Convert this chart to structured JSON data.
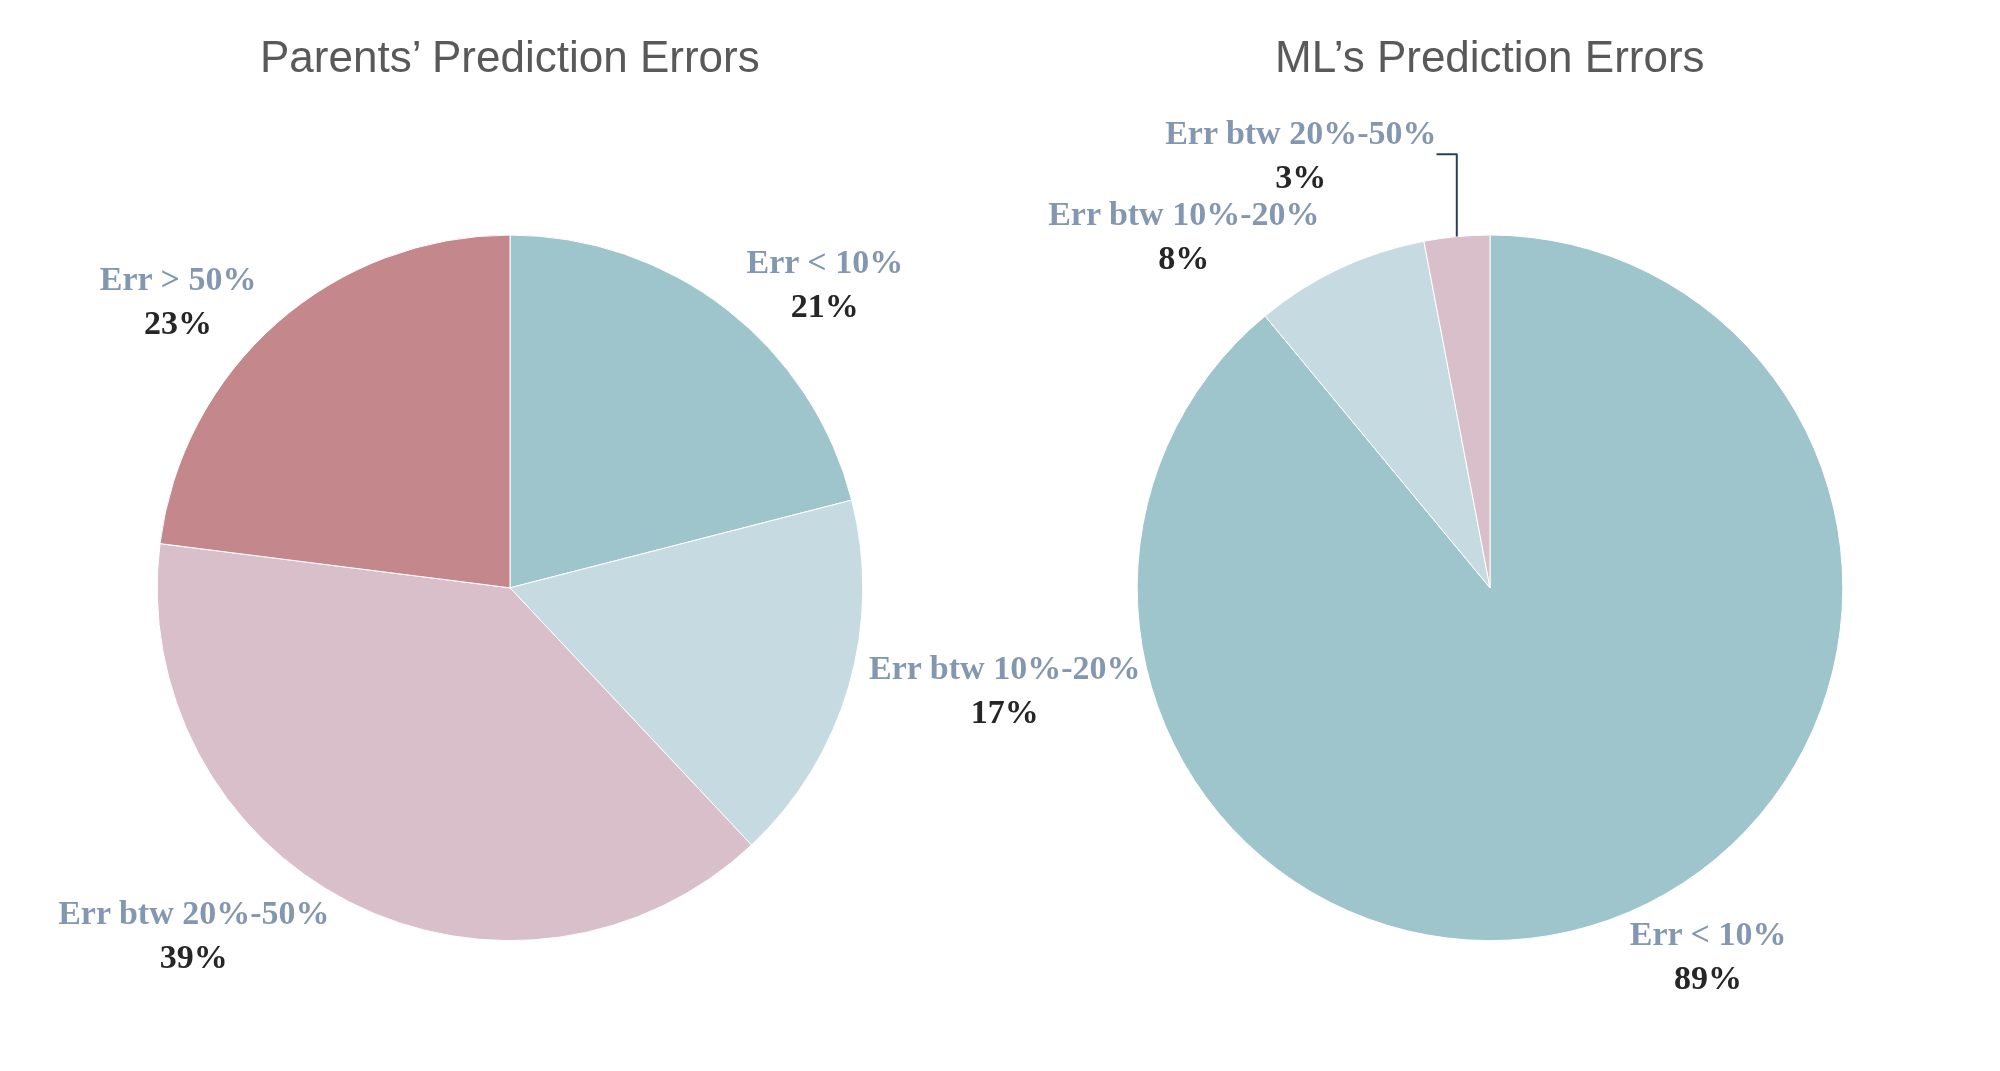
{
  "chart_data": [
    {
      "type": "pie",
      "title": "Parents’ Prediction Errors",
      "categories": [
        "Err < 10%",
        "Err btw 10%-20%",
        "Err btw 20%-50%",
        "Err > 50%"
      ],
      "values": [
        21,
        17,
        39,
        23
      ],
      "colors": [
        "#9ec4cc",
        "#c6dae1",
        "#d9bfc9",
        "#c4878c"
      ],
      "value_labels": [
        "21%",
        "17%",
        "39%",
        "23%"
      ]
    },
    {
      "type": "pie",
      "title": "ML’s Prediction Errors",
      "categories": [
        "Err < 10%",
        "Err btw 10%-20%",
        "Err btw 20%-50%"
      ],
      "values": [
        89,
        8,
        3
      ],
      "colors": [
        "#9ec4cc",
        "#c6dae1",
        "#d9bfc9"
      ],
      "value_labels": [
        "89%",
        "8%",
        "3%"
      ]
    }
  ]
}
